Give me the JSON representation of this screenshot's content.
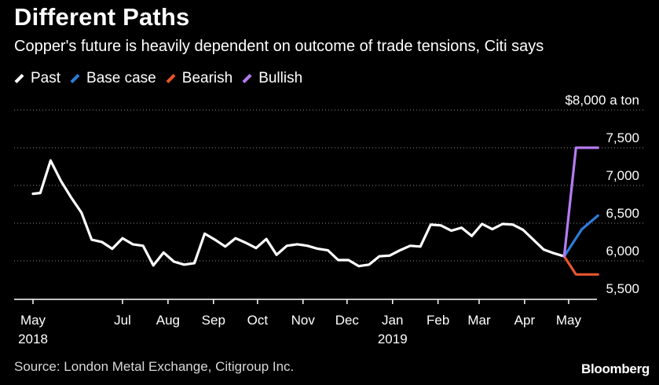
{
  "header": {
    "title": "Different Paths",
    "subtitle": "Copper's future is heavily dependent on outcome of trade tensions, Citi says"
  },
  "footer": {
    "source": "Source: London Metal Exchange, Citigroup Inc.",
    "brand": "Bloomberg"
  },
  "chart_data": {
    "type": "line",
    "title": "Different Paths",
    "subtitle": "Copper's future is heavily dependent on outcome of trade tensions, Citi says",
    "ylabel": "",
    "y_unit_label": "$8,000 a ton",
    "ylim": [
      5500,
      8000
    ],
    "yticks": [
      5500,
      6000,
      6500,
      7000,
      7500,
      8000
    ],
    "ytick_labels": [
      "5,500",
      "6,000",
      "6,500",
      "7,000",
      "7,500",
      "$8,000 a ton"
    ],
    "xlim": [
      "2018-05-01",
      "2019-05-31"
    ],
    "xticks": [
      {
        "date": "2018-05-01",
        "label": "May",
        "sublabel": "2018"
      },
      {
        "date": "2018-07-01",
        "label": "Jul",
        "sublabel": ""
      },
      {
        "date": "2018-08-01",
        "label": "Aug",
        "sublabel": ""
      },
      {
        "date": "2018-09-01",
        "label": "Sep",
        "sublabel": ""
      },
      {
        "date": "2018-10-01",
        "label": "Oct",
        "sublabel": ""
      },
      {
        "date": "2018-11-01",
        "label": "Nov",
        "sublabel": ""
      },
      {
        "date": "2018-12-01",
        "label": "Dec",
        "sublabel": ""
      },
      {
        "date": "2019-01-01",
        "label": "Jan",
        "sublabel": "2019"
      },
      {
        "date": "2019-02-01",
        "label": "Feb",
        "sublabel": ""
      },
      {
        "date": "2019-03-01",
        "label": "Mar",
        "sublabel": ""
      },
      {
        "date": "2019-04-01",
        "label": "Apr",
        "sublabel": ""
      },
      {
        "date": "2019-05-01",
        "label": "May",
        "sublabel": ""
      }
    ],
    "grid": "horizontal dotted",
    "legend_position": "top-left",
    "series": [
      {
        "name": "Past",
        "color": "#ffffff",
        "points": [
          [
            "2018-05-01",
            6890
          ],
          [
            "2018-05-06",
            6900
          ],
          [
            "2018-05-13",
            7330
          ],
          [
            "2018-05-20",
            7060
          ],
          [
            "2018-05-27",
            6840
          ],
          [
            "2018-06-03",
            6640
          ],
          [
            "2018-06-10",
            6280
          ],
          [
            "2018-06-17",
            6250
          ],
          [
            "2018-06-24",
            6160
          ],
          [
            "2018-07-01",
            6300
          ],
          [
            "2018-07-08",
            6220
          ],
          [
            "2018-07-15",
            6200
          ],
          [
            "2018-07-22",
            5940
          ],
          [
            "2018-07-29",
            6110
          ],
          [
            "2018-08-05",
            5990
          ],
          [
            "2018-08-12",
            5950
          ],
          [
            "2018-08-19",
            5970
          ],
          [
            "2018-08-26",
            6360
          ],
          [
            "2018-09-02",
            6280
          ],
          [
            "2018-09-09",
            6190
          ],
          [
            "2018-09-16",
            6300
          ],
          [
            "2018-09-23",
            6240
          ],
          [
            "2018-09-30",
            6170
          ],
          [
            "2018-10-07",
            6290
          ],
          [
            "2018-10-14",
            6080
          ],
          [
            "2018-10-21",
            6200
          ],
          [
            "2018-10-28",
            6220
          ],
          [
            "2018-11-04",
            6200
          ],
          [
            "2018-11-11",
            6160
          ],
          [
            "2018-11-18",
            6140
          ],
          [
            "2018-11-25",
            6010
          ],
          [
            "2018-12-02",
            6010
          ],
          [
            "2018-12-09",
            5930
          ],
          [
            "2018-12-16",
            5950
          ],
          [
            "2018-12-23",
            6060
          ],
          [
            "2018-12-30",
            6070
          ],
          [
            "2019-01-06",
            6140
          ],
          [
            "2019-01-13",
            6200
          ],
          [
            "2019-01-20",
            6190
          ],
          [
            "2019-01-27",
            6480
          ],
          [
            "2019-02-03",
            6470
          ],
          [
            "2019-02-10",
            6400
          ],
          [
            "2019-02-17",
            6440
          ],
          [
            "2019-02-24",
            6330
          ],
          [
            "2019-03-03",
            6490
          ],
          [
            "2019-03-10",
            6420
          ],
          [
            "2019-03-17",
            6490
          ],
          [
            "2019-03-24",
            6480
          ],
          [
            "2019-03-31",
            6410
          ],
          [
            "2019-04-07",
            6280
          ],
          [
            "2019-04-14",
            6150
          ],
          [
            "2019-04-21",
            6100
          ],
          [
            "2019-04-28",
            6060
          ]
        ]
      },
      {
        "name": "Base case",
        "color": "#2e7bd6",
        "points": [
          [
            "2019-04-28",
            6060
          ],
          [
            "2019-05-10",
            6420
          ],
          [
            "2019-05-21",
            6600
          ]
        ]
      },
      {
        "name": "Bearish",
        "color": "#e8552d",
        "points": [
          [
            "2019-04-28",
            6060
          ],
          [
            "2019-05-06",
            5820
          ],
          [
            "2019-05-21",
            5820
          ]
        ]
      },
      {
        "name": "Bullish",
        "color": "#b57cf2",
        "points": [
          [
            "2019-04-28",
            6060
          ],
          [
            "2019-05-06",
            7500
          ],
          [
            "2019-05-21",
            7500
          ]
        ]
      }
    ]
  }
}
